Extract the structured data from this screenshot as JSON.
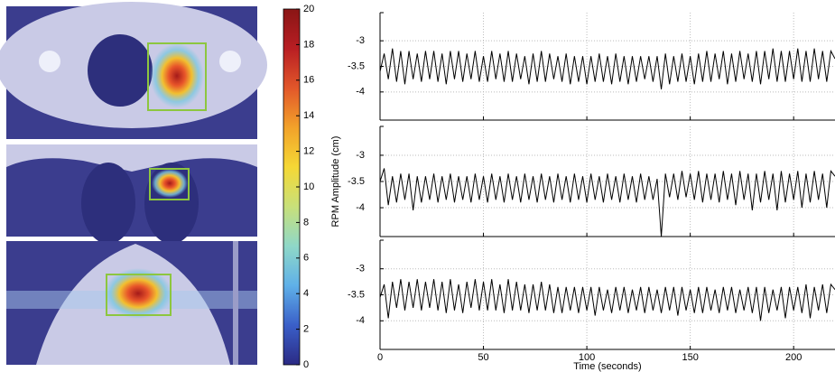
{
  "chart_data": [
    {
      "type": "colorbar",
      "ylim": [
        0,
        20
      ],
      "yticks": [
        0,
        2,
        4,
        6,
        8,
        10,
        12,
        14,
        16,
        18,
        20
      ],
      "colormap": [
        "#2b2a84",
        "#3a5fc8",
        "#5fb0e8",
        "#8fd8c8",
        "#c8e07a",
        "#f5d835",
        "#f2a22a",
        "#e2572a",
        "#b81e23",
        "#8a1515"
      ]
    },
    {
      "type": "line",
      "ylim": [
        -4.55,
        -2.45
      ],
      "yticks": [
        -4,
        -3.5,
        -3
      ],
      "xlim": [
        0,
        220
      ],
      "xticks": [
        0,
        50,
        100,
        150,
        200
      ],
      "grid": true,
      "x": [
        0,
        2,
        4,
        6,
        8,
        10,
        12,
        14,
        16,
        18,
        20,
        22,
        24,
        26,
        28,
        30,
        32,
        34,
        36,
        38,
        40,
        42,
        44,
        46,
        48,
        50,
        52,
        54,
        56,
        58,
        60,
        62,
        64,
        66,
        68,
        70,
        72,
        74,
        76,
        78,
        80,
        82,
        84,
        86,
        88,
        90,
        92,
        94,
        96,
        98,
        100,
        102,
        104,
        106,
        108,
        110,
        112,
        114,
        116,
        118,
        120,
        122,
        124,
        126,
        128,
        130,
        132,
        134,
        136,
        138,
        140,
        142,
        144,
        146,
        148,
        150,
        152,
        154,
        156,
        158,
        160,
        162,
        164,
        166,
        168,
        170,
        172,
        174,
        176,
        178,
        180,
        182,
        184,
        186,
        188,
        190,
        192,
        194,
        196,
        198,
        200,
        202,
        204,
        206,
        208,
        210,
        212,
        214,
        216,
        218,
        220
      ],
      "series": [
        {
          "color": "#000000",
          "values": [
            -3.6,
            -3.25,
            -3.75,
            -3.15,
            -3.8,
            -3.2,
            -3.85,
            -3.2,
            -3.75,
            -3.25,
            -3.8,
            -3.2,
            -3.75,
            -3.2,
            -3.8,
            -3.25,
            -3.85,
            -3.2,
            -3.75,
            -3.2,
            -3.8,
            -3.25,
            -3.75,
            -3.2,
            -3.8,
            -3.3,
            -3.8,
            -3.2,
            -3.75,
            -3.25,
            -3.8,
            -3.2,
            -3.8,
            -3.25,
            -3.75,
            -3.3,
            -3.85,
            -3.25,
            -3.8,
            -3.2,
            -3.8,
            -3.25,
            -3.75,
            -3.3,
            -3.8,
            -3.25,
            -3.85,
            -3.3,
            -3.8,
            -3.3,
            -3.85,
            -3.3,
            -3.8,
            -3.25,
            -3.8,
            -3.3,
            -3.85,
            -3.25,
            -3.8,
            -3.3,
            -3.85,
            -3.3,
            -3.8,
            -3.3,
            -3.75,
            -3.3,
            -3.8,
            -3.3,
            -3.95,
            -3.25,
            -3.85,
            -3.3,
            -3.8,
            -3.25,
            -3.8,
            -3.3,
            -3.85,
            -3.25,
            -3.8,
            -3.2,
            -3.8,
            -3.25,
            -3.75,
            -3.2,
            -3.85,
            -3.25,
            -3.8,
            -3.2,
            -3.75,
            -3.25,
            -3.8,
            -3.2,
            -3.85,
            -3.2,
            -3.75,
            -3.15,
            -3.8,
            -3.2,
            -3.8,
            -3.2,
            -3.75,
            -3.15,
            -3.8,
            -3.2,
            -3.8,
            -3.15,
            -3.75,
            -3.2,
            -3.8,
            -3.2,
            -3.35
          ]
        }
      ]
    },
    {
      "type": "line",
      "ylabel": "RPM Amplitude (cm)",
      "ylim": [
        -4.55,
        -2.45
      ],
      "yticks": [
        -4,
        -3.5,
        -3
      ],
      "xlim": [
        0,
        220
      ],
      "xticks": [
        0,
        50,
        100,
        150,
        200
      ],
      "grid": true,
      "x": [
        0,
        2,
        4,
        6,
        8,
        10,
        12,
        14,
        16,
        18,
        20,
        22,
        24,
        26,
        28,
        30,
        32,
        34,
        36,
        38,
        40,
        42,
        44,
        46,
        48,
        50,
        52,
        54,
        56,
        58,
        60,
        62,
        64,
        66,
        68,
        70,
        72,
        74,
        76,
        78,
        80,
        82,
        84,
        86,
        88,
        90,
        92,
        94,
        96,
        98,
        100,
        102,
        104,
        106,
        108,
        110,
        112,
        114,
        116,
        118,
        120,
        122,
        124,
        126,
        128,
        130,
        132,
        134,
        136,
        138,
        140,
        142,
        144,
        146,
        148,
        150,
        152,
        154,
        156,
        158,
        160,
        162,
        164,
        166,
        168,
        170,
        172,
        174,
        176,
        178,
        180,
        182,
        184,
        186,
        188,
        190,
        192,
        194,
        196,
        198,
        200,
        202,
        204,
        206,
        208,
        210,
        212,
        214,
        216,
        218,
        220
      ],
      "series": [
        {
          "color": "#000000",
          "values": [
            -3.5,
            -3.25,
            -3.95,
            -3.4,
            -3.9,
            -3.35,
            -3.85,
            -3.35,
            -4.05,
            -3.4,
            -3.9,
            -3.4,
            -3.85,
            -3.35,
            -3.9,
            -3.4,
            -3.85,
            -3.35,
            -3.9,
            -3.4,
            -3.85,
            -3.4,
            -3.9,
            -3.35,
            -3.85,
            -3.4,
            -3.9,
            -3.35,
            -3.85,
            -3.4,
            -3.9,
            -3.35,
            -3.85,
            -3.4,
            -3.9,
            -3.35,
            -3.85,
            -3.4,
            -3.9,
            -3.35,
            -3.85,
            -3.4,
            -3.9,
            -3.35,
            -3.85,
            -3.4,
            -3.9,
            -3.35,
            -3.85,
            -3.4,
            -3.9,
            -3.35,
            -3.85,
            -3.4,
            -3.9,
            -3.35,
            -3.85,
            -3.4,
            -3.9,
            -3.35,
            -3.85,
            -3.4,
            -3.9,
            -3.35,
            -3.85,
            -3.4,
            -3.85,
            -3.45,
            -4.55,
            -3.35,
            -3.8,
            -3.35,
            -3.85,
            -3.3,
            -3.8,
            -3.35,
            -3.85,
            -3.3,
            -3.9,
            -3.35,
            -3.85,
            -3.35,
            -3.9,
            -3.3,
            -3.85,
            -3.35,
            -3.95,
            -3.3,
            -3.85,
            -3.35,
            -4.05,
            -3.35,
            -3.9,
            -3.3,
            -3.85,
            -3.35,
            -4.05,
            -3.3,
            -3.9,
            -3.35,
            -3.85,
            -3.3,
            -4.0,
            -3.35,
            -3.9,
            -3.3,
            -3.85,
            -3.35,
            -4.0,
            -3.3,
            -3.4
          ]
        }
      ]
    },
    {
      "type": "line",
      "xlabel": "Time (seconds)",
      "ylim": [
        -4.55,
        -2.45
      ],
      "yticks": [
        -4,
        -3.5,
        -3
      ],
      "xlim": [
        0,
        220
      ],
      "xticks": [
        0,
        50,
        100,
        150,
        200
      ],
      "grid": true,
      "x": [
        0,
        2,
        4,
        6,
        8,
        10,
        12,
        14,
        16,
        18,
        20,
        22,
        24,
        26,
        28,
        30,
        32,
        34,
        36,
        38,
        40,
        42,
        44,
        46,
        48,
        50,
        52,
        54,
        56,
        58,
        60,
        62,
        64,
        66,
        68,
        70,
        72,
        74,
        76,
        78,
        80,
        82,
        84,
        86,
        88,
        90,
        92,
        94,
        96,
        98,
        100,
        102,
        104,
        106,
        108,
        110,
        112,
        114,
        116,
        118,
        120,
        122,
        124,
        126,
        128,
        130,
        132,
        134,
        136,
        138,
        140,
        142,
        144,
        146,
        148,
        150,
        152,
        154,
        156,
        158,
        160,
        162,
        164,
        166,
        168,
        170,
        172,
        174,
        176,
        178,
        180,
        182,
        184,
        186,
        188,
        190,
        192,
        194,
        196,
        198,
        200,
        202,
        204,
        206,
        208,
        210,
        212,
        214,
        216,
        218,
        220
      ],
      "series": [
        {
          "color": "#000000",
          "values": [
            -3.55,
            -3.3,
            -3.95,
            -3.25,
            -3.75,
            -3.2,
            -3.8,
            -3.25,
            -3.75,
            -3.2,
            -3.8,
            -3.25,
            -3.75,
            -3.2,
            -3.8,
            -3.25,
            -3.85,
            -3.2,
            -3.8,
            -3.3,
            -3.85,
            -3.25,
            -3.75,
            -3.2,
            -3.8,
            -3.25,
            -3.8,
            -3.2,
            -3.8,
            -3.3,
            -3.85,
            -3.2,
            -3.8,
            -3.25,
            -3.8,
            -3.3,
            -3.85,
            -3.3,
            -3.8,
            -3.25,
            -3.8,
            -3.3,
            -3.85,
            -3.35,
            -3.85,
            -3.35,
            -3.8,
            -3.35,
            -3.85,
            -3.35,
            -3.8,
            -3.35,
            -3.9,
            -3.35,
            -3.8,
            -3.4,
            -3.85,
            -3.35,
            -3.8,
            -3.35,
            -3.85,
            -3.4,
            -3.8,
            -3.35,
            -3.85,
            -3.35,
            -3.8,
            -3.4,
            -3.85,
            -3.35,
            -3.8,
            -3.35,
            -3.9,
            -3.35,
            -3.8,
            -3.4,
            -3.85,
            -3.35,
            -3.85,
            -3.35,
            -3.8,
            -3.4,
            -3.85,
            -3.35,
            -3.8,
            -3.35,
            -3.85,
            -3.4,
            -3.8,
            -3.35,
            -3.85,
            -3.35,
            -4.0,
            -3.35,
            -3.85,
            -3.4,
            -3.8,
            -3.35,
            -3.95,
            -3.35,
            -3.8,
            -3.35,
            -3.85,
            -3.3,
            -3.95,
            -3.35,
            -3.8,
            -3.3,
            -3.85,
            -3.3,
            -3.4
          ]
        }
      ]
    }
  ]
}
